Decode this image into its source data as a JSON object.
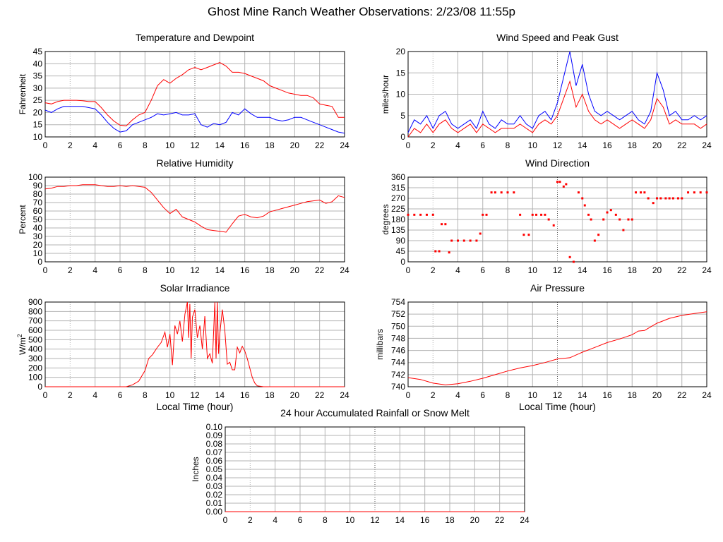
{
  "page": {
    "title": "Ghost Mine Ranch Weather Observations: 2/23/08 11:55p",
    "colors": {
      "red": "#ff0000",
      "blue": "#0000ff",
      "grid": "#b3b3b3",
      "axis": "#000000"
    }
  },
  "chart_data": [
    {
      "id": "temperature",
      "type": "line",
      "title": "Temperature and Dewpoint",
      "xlabel": "",
      "ylabel": "Fahrenheit",
      "xlim": [
        0,
        24
      ],
      "ylim": [
        10,
        45
      ],
      "xticks": [
        0,
        2,
        4,
        6,
        8,
        10,
        12,
        14,
        16,
        18,
        20,
        22,
        24
      ],
      "yticks": [
        10,
        15,
        20,
        25,
        30,
        35,
        40,
        45
      ],
      "grid": true,
      "series": [
        {
          "color": "#ff0000",
          "x": [
            0,
            0.5,
            1,
            1.5,
            2,
            2.5,
            3,
            3.5,
            4,
            4.5,
            5,
            5.5,
            6,
            6.5,
            7,
            7.5,
            8,
            8.5,
            9,
            9.5,
            10,
            10.5,
            11,
            11.5,
            12,
            12.5,
            13,
            13.5,
            14,
            14.5,
            15,
            15.5,
            16,
            16.5,
            17,
            17.5,
            18,
            18.5,
            19,
            19.5,
            20,
            20.5,
            21,
            21.5,
            22,
            22.5,
            23,
            23.5,
            24
          ],
          "y": [
            24,
            23.5,
            24.5,
            25,
            25,
            25,
            24.8,
            24.5,
            24.5,
            22,
            19,
            16.5,
            14.8,
            14.5,
            17,
            19,
            20,
            25,
            31,
            33.5,
            32,
            34,
            35.5,
            37.5,
            38.5,
            37.5,
            38.5,
            39.5,
            40.5,
            39,
            36.5,
            36.5,
            36,
            35,
            34,
            33,
            31,
            30,
            29,
            28,
            27.5,
            27,
            27,
            26,
            23.5,
            23,
            22.5,
            18,
            18
          ]
        },
        {
          "color": "#0000ff",
          "x": [
            0,
            0.5,
            1,
            1.5,
            2,
            2.5,
            3,
            3.5,
            4,
            4.5,
            5,
            5.5,
            6,
            6.5,
            7,
            7.5,
            8,
            8.5,
            9,
            9.5,
            10,
            10.5,
            11,
            11.5,
            12,
            12.5,
            13,
            13.5,
            14,
            14.5,
            15,
            15.5,
            16,
            16.5,
            17,
            17.5,
            18,
            18.5,
            19,
            19.5,
            20,
            20.5,
            21,
            21.5,
            22,
            22.5,
            23,
            23.5,
            24
          ],
          "y": [
            21,
            20,
            21.5,
            22.5,
            22.5,
            22.5,
            22.5,
            22,
            21.5,
            19,
            16,
            13.5,
            12,
            12.5,
            15,
            16,
            17,
            18,
            19.5,
            19,
            19.5,
            20,
            19,
            19,
            19.5,
            15,
            14,
            15.5,
            15,
            16,
            20,
            19,
            21.5,
            19.5,
            18,
            18,
            18,
            17,
            16.5,
            17,
            18,
            18,
            17,
            16,
            15,
            14,
            13,
            12,
            11.5
          ]
        }
      ]
    },
    {
      "id": "wind",
      "type": "line",
      "title": "Wind Speed and Peak Gust",
      "xlabel": "",
      "ylabel": "miles/hour",
      "xlim": [
        0,
        24
      ],
      "ylim": [
        0,
        20
      ],
      "xticks": [
        0,
        2,
        4,
        6,
        8,
        10,
        12,
        14,
        16,
        18,
        20,
        22,
        24
      ],
      "yticks": [
        0,
        5,
        10,
        15,
        20
      ],
      "grid": true,
      "series": [
        {
          "color": "#0000ff",
          "x": [
            0,
            0.5,
            1,
            1.5,
            2,
            2.5,
            3,
            3.5,
            4,
            4.5,
            5,
            5.5,
            6,
            6.5,
            7,
            7.5,
            8,
            8.5,
            9,
            9.5,
            10,
            10.5,
            11,
            11.5,
            12,
            12.5,
            13,
            13.5,
            14,
            14.5,
            15,
            15.5,
            16,
            16.5,
            17,
            17.5,
            18,
            18.5,
            19,
            19.5,
            20,
            20.5,
            21,
            21.5,
            22,
            22.5,
            23,
            23.5,
            24
          ],
          "y": [
            1,
            4,
            3,
            5,
            2,
            5,
            6,
            3,
            2,
            3,
            4,
            2,
            6,
            3,
            2,
            4,
            3,
            3,
            5,
            3,
            2,
            5,
            6,
            4,
            8,
            14,
            20,
            12,
            17,
            10,
            6,
            5,
            6,
            5,
            4,
            5,
            6,
            4,
            3,
            6,
            15,
            11,
            5,
            6,
            4,
            4,
            5,
            4,
            5
          ]
        },
        {
          "color": "#ff0000",
          "x": [
            0,
            0.5,
            1,
            1.5,
            2,
            2.5,
            3,
            3.5,
            4,
            4.5,
            5,
            5.5,
            6,
            6.5,
            7,
            7.5,
            8,
            8.5,
            9,
            9.5,
            10,
            10.5,
            11,
            11.5,
            12,
            12.5,
            13,
            13.5,
            14,
            14.5,
            15,
            15.5,
            16,
            16.5,
            17,
            17.5,
            18,
            18.5,
            19,
            19.5,
            20,
            20.5,
            21,
            21.5,
            22,
            22.5,
            23,
            23.5,
            24
          ],
          "y": [
            0,
            2,
            1,
            3,
            1,
            3,
            4,
            2,
            1,
            2,
            3,
            1,
            3,
            2,
            1,
            2,
            2,
            2,
            3,
            2,
            1,
            3,
            4,
            3,
            5,
            9,
            13,
            7,
            10,
            6,
            4,
            3,
            4,
            3,
            2,
            3,
            4,
            3,
            2,
            4,
            9,
            7,
            3,
            4,
            3,
            3,
            3,
            2,
            3
          ]
        }
      ]
    },
    {
      "id": "humidity",
      "type": "line",
      "title": "Relative Humidity",
      "xlabel": "",
      "ylabel": "Percent",
      "xlim": [
        0,
        24
      ],
      "ylim": [
        0,
        100
      ],
      "xticks": [
        0,
        2,
        4,
        6,
        8,
        10,
        12,
        14,
        16,
        18,
        20,
        22,
        24
      ],
      "yticks": [
        0,
        10,
        20,
        30,
        40,
        50,
        60,
        70,
        80,
        90,
        100
      ],
      "grid": true,
      "series": [
        {
          "color": "#ff0000",
          "x": [
            0,
            0.5,
            1,
            1.5,
            2,
            2.5,
            3,
            3.5,
            4,
            4.5,
            5,
            5.5,
            6,
            6.5,
            7,
            7.5,
            8,
            8.5,
            9,
            9.5,
            10,
            10.5,
            11,
            11.5,
            12,
            12.5,
            13,
            13.5,
            14,
            14.5,
            15,
            15.5,
            16,
            16.5,
            17,
            17.5,
            18,
            18.5,
            19,
            19.5,
            20,
            20.5,
            21,
            21.5,
            22,
            22.5,
            23,
            23.5,
            24
          ],
          "y": [
            86,
            87,
            89,
            89,
            90,
            90,
            91,
            91,
            91,
            90,
            89,
            89,
            90,
            89,
            90,
            89,
            88,
            82,
            73,
            64,
            57,
            62,
            53,
            50,
            47,
            42,
            38,
            37,
            36,
            35,
            45,
            54,
            56,
            53,
            52,
            54,
            59,
            61,
            63,
            65,
            67,
            69,
            71,
            72,
            73,
            69,
            71,
            78,
            76
          ]
        }
      ]
    },
    {
      "id": "winddir",
      "type": "scatter",
      "title": "Wind Direction",
      "xlabel": "",
      "ylabel": "degrees",
      "xlim": [
        0,
        24
      ],
      "ylim": [
        0,
        360
      ],
      "xticks": [
        0,
        2,
        4,
        6,
        8,
        10,
        12,
        14,
        16,
        18,
        20,
        22,
        24
      ],
      "yticks": [
        0,
        45,
        90,
        135,
        180,
        225,
        270,
        315,
        360
      ],
      "grid": true,
      "series": [
        {
          "color": "#ff0000",
          "x": [
            0,
            0.5,
            1,
            1.5,
            2,
            2.2,
            2.5,
            2.7,
            3,
            3.3,
            3.5,
            4,
            4.5,
            5,
            5.5,
            5.8,
            6,
            6.3,
            6.7,
            7,
            7.5,
            8,
            8.5,
            9,
            9.3,
            9.7,
            10,
            10.3,
            10.7,
            11,
            11.3,
            11.7,
            12,
            12.2,
            12.5,
            12.7,
            13,
            13.3,
            13.7,
            14,
            14.2,
            14.5,
            14.7,
            15,
            15.3,
            15.7,
            16,
            16.3,
            16.7,
            17,
            17.3,
            17.7,
            18,
            18.3,
            18.7,
            19,
            19.3,
            19.7,
            20,
            20.3,
            20.7,
            21,
            21.3,
            21.7,
            22,
            22.5,
            23,
            23.5,
            24
          ],
          "y": [
            200,
            200,
            200,
            200,
            200,
            45,
            45,
            160,
            160,
            40,
            90,
            90,
            90,
            90,
            90,
            120,
            200,
            200,
            295,
            295,
            295,
            295,
            295,
            200,
            115,
            115,
            200,
            200,
            200,
            200,
            180,
            155,
            340,
            340,
            320,
            330,
            20,
            0,
            295,
            270,
            240,
            200,
            180,
            90,
            115,
            180,
            210,
            220,
            200,
            180,
            135,
            180,
            180,
            295,
            295,
            295,
            270,
            250,
            270,
            270,
            270,
            270,
            270,
            270,
            270,
            295,
            295,
            295,
            295
          ]
        }
      ]
    },
    {
      "id": "solar",
      "type": "line",
      "title": "Solar Irradiance",
      "xlabel": "Local Time (hour)",
      "ylabel": "W/m",
      "ylabel_sup": "2",
      "xlim": [
        0,
        24
      ],
      "ylim": [
        0,
        900
      ],
      "xticks": [
        0,
        2,
        4,
        6,
        8,
        10,
        12,
        14,
        16,
        18,
        20,
        22,
        24
      ],
      "yticks": [
        0,
        100,
        200,
        300,
        400,
        500,
        600,
        700,
        800,
        900
      ],
      "grid": true,
      "series": [
        {
          "color": "#ff0000",
          "x": [
            0,
            6.5,
            7,
            7.5,
            8,
            8.3,
            8.6,
            9,
            9.3,
            9.6,
            9.8,
            10,
            10.2,
            10.4,
            10.6,
            10.8,
            11,
            11.2,
            11.4,
            11.5,
            11.6,
            11.7,
            11.8,
            12,
            12.2,
            12.4,
            12.6,
            12.8,
            13,
            13.2,
            13.4,
            13.6,
            13.7,
            13.8,
            13.9,
            14,
            14.2,
            14.4,
            14.6,
            14.8,
            15,
            15.2,
            15.4,
            15.6,
            15.8,
            16,
            16.2,
            16.4,
            16.6,
            16.8,
            17,
            17.5,
            24
          ],
          "y": [
            0,
            0,
            20,
            60,
            170,
            300,
            340,
            420,
            470,
            580,
            420,
            560,
            230,
            650,
            560,
            700,
            480,
            770,
            900,
            520,
            880,
            300,
            740,
            820,
            520,
            650,
            400,
            750,
            300,
            350,
            250,
            900,
            300,
            900,
            350,
            560,
            820,
            600,
            240,
            260,
            180,
            180,
            420,
            360,
            430,
            380,
            300,
            200,
            100,
            40,
            10,
            0,
            0
          ]
        }
      ]
    },
    {
      "id": "pressure",
      "type": "line",
      "title": "Air Pressure",
      "xlabel": "Local Time (hour)",
      "ylabel": "millibars",
      "xlim": [
        0,
        24
      ],
      "ylim": [
        740,
        754
      ],
      "xticks": [
        0,
        2,
        4,
        6,
        8,
        10,
        12,
        14,
        16,
        18,
        20,
        22,
        24
      ],
      "yticks": [
        740,
        742,
        744,
        746,
        748,
        750,
        752,
        754
      ],
      "grid": true,
      "series": [
        {
          "color": "#ff0000",
          "x": [
            0,
            1,
            2,
            3,
            4,
            5,
            6,
            7,
            8,
            9,
            10,
            11,
            12,
            13,
            14,
            15,
            16,
            17,
            18,
            18.5,
            19,
            19.5,
            20,
            20.5,
            21,
            22,
            23,
            24
          ],
          "y": [
            741.5,
            741.2,
            740.6,
            740.3,
            740.5,
            740.9,
            741.4,
            742.0,
            742.6,
            743.1,
            743.5,
            744.0,
            744.6,
            744.8,
            745.7,
            746.5,
            747.3,
            747.9,
            748.6,
            749.2,
            749.3,
            749.9,
            750.5,
            750.9,
            751.3,
            751.8,
            752.1,
            752.4
          ]
        }
      ]
    },
    {
      "id": "rain",
      "type": "line",
      "title": "24 hour Accumulated Rainfall or Snow Melt",
      "xlabel": "",
      "ylabel": "Inches",
      "xlim": [
        0,
        24
      ],
      "ylim": [
        0,
        0.1
      ],
      "xticks": [
        0,
        2,
        4,
        6,
        8,
        10,
        12,
        14,
        16,
        18,
        20,
        22,
        24
      ],
      "yticks": [
        0.0,
        0.01,
        0.02,
        0.03,
        0.04,
        0.05,
        0.06,
        0.07,
        0.08,
        0.09,
        0.1
      ],
      "ytick_labels": [
        "0.00",
        "0.01",
        "0.02",
        "0.03",
        "0.04",
        "0.05",
        "0.06",
        "0.07",
        "0.08",
        "0.09",
        "0.10"
      ],
      "grid": true,
      "series": [
        {
          "color": "#ff0000",
          "x": [
            0,
            24
          ],
          "y": [
            0,
            0
          ]
        }
      ]
    }
  ]
}
